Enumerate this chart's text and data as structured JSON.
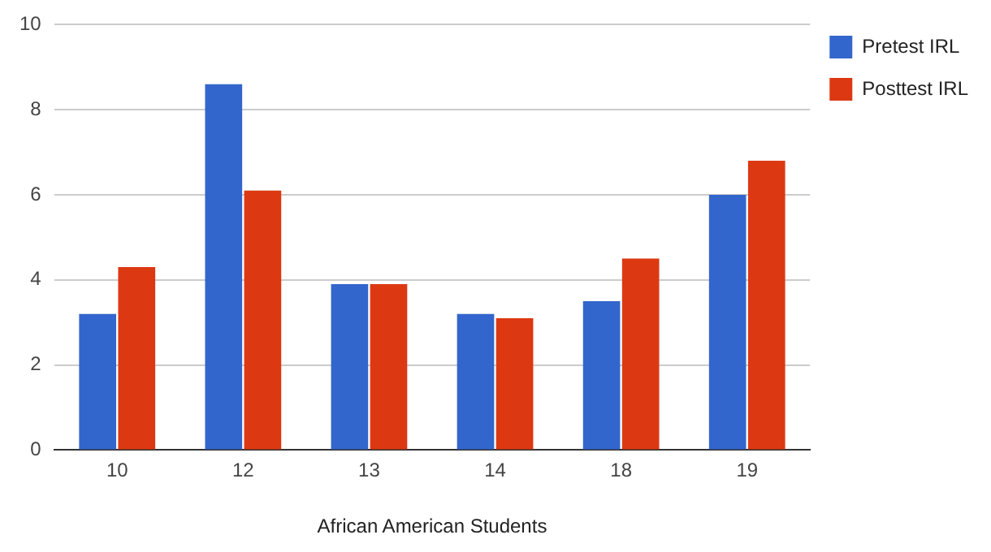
{
  "chart_data": {
    "type": "bar",
    "xlabel": "African American Students",
    "categories": [
      "10",
      "12",
      "13",
      "14",
      "18",
      "19"
    ],
    "series": [
      {
        "name": "Pretest IRL",
        "color": "#3366cc",
        "values": [
          3.2,
          8.6,
          3.9,
          3.2,
          3.5,
          6.0
        ]
      },
      {
        "name": "Posttest IRL",
        "color": "#dc3912",
        "values": [
          4.3,
          6.1,
          3.9,
          3.1,
          4.5,
          6.8
        ]
      }
    ],
    "ylim": [
      0,
      10
    ],
    "yticks": [
      0,
      2,
      4,
      6,
      8,
      10
    ],
    "grid": "y",
    "legend": "top right"
  }
}
